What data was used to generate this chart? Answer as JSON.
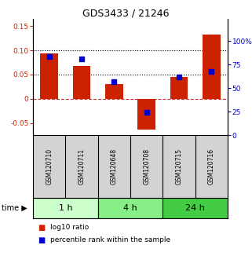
{
  "title": "GDS3433 / 21246",
  "samples": [
    "GSM120710",
    "GSM120711",
    "GSM120648",
    "GSM120708",
    "GSM120715",
    "GSM120716"
  ],
  "log10_ratio": [
    0.093,
    0.068,
    0.031,
    -0.063,
    0.045,
    0.132
  ],
  "percentile_rank": [
    0.84,
    0.81,
    0.57,
    0.24,
    0.62,
    0.68
  ],
  "groups": [
    {
      "label": "1 h",
      "indices": [
        0,
        1
      ],
      "color": "#ccffcc"
    },
    {
      "label": "4 h",
      "indices": [
        2,
        3
      ],
      "color": "#88ee88"
    },
    {
      "label": "24 h",
      "indices": [
        4,
        5
      ],
      "color": "#44cc44"
    }
  ],
  "bar_color": "#cc2200",
  "dot_color": "#0000cc",
  "ylim_left": [
    -0.075,
    0.165
  ],
  "ylim_right": [
    0,
    1.2375
  ],
  "yticks_left": [
    -0.05,
    0,
    0.05,
    0.1,
    0.15
  ],
  "yticks_right": [
    0,
    0.25,
    0.5,
    0.75,
    1.0
  ],
  "ytick_labels_left": [
    "-0.05",
    "0",
    "0.05",
    "0.10",
    "0.15"
  ],
  "ytick_labels_right": [
    "0",
    "25",
    "50",
    "75",
    "100%"
  ],
  "hlines": [
    0.05,
    0.1
  ],
  "zero_line": 0,
  "background_color": "#ffffff",
  "legend_items": [
    {
      "label": "log10 ratio",
      "color": "#cc2200"
    },
    {
      "label": "percentile rank within the sample",
      "color": "#0000cc"
    }
  ]
}
